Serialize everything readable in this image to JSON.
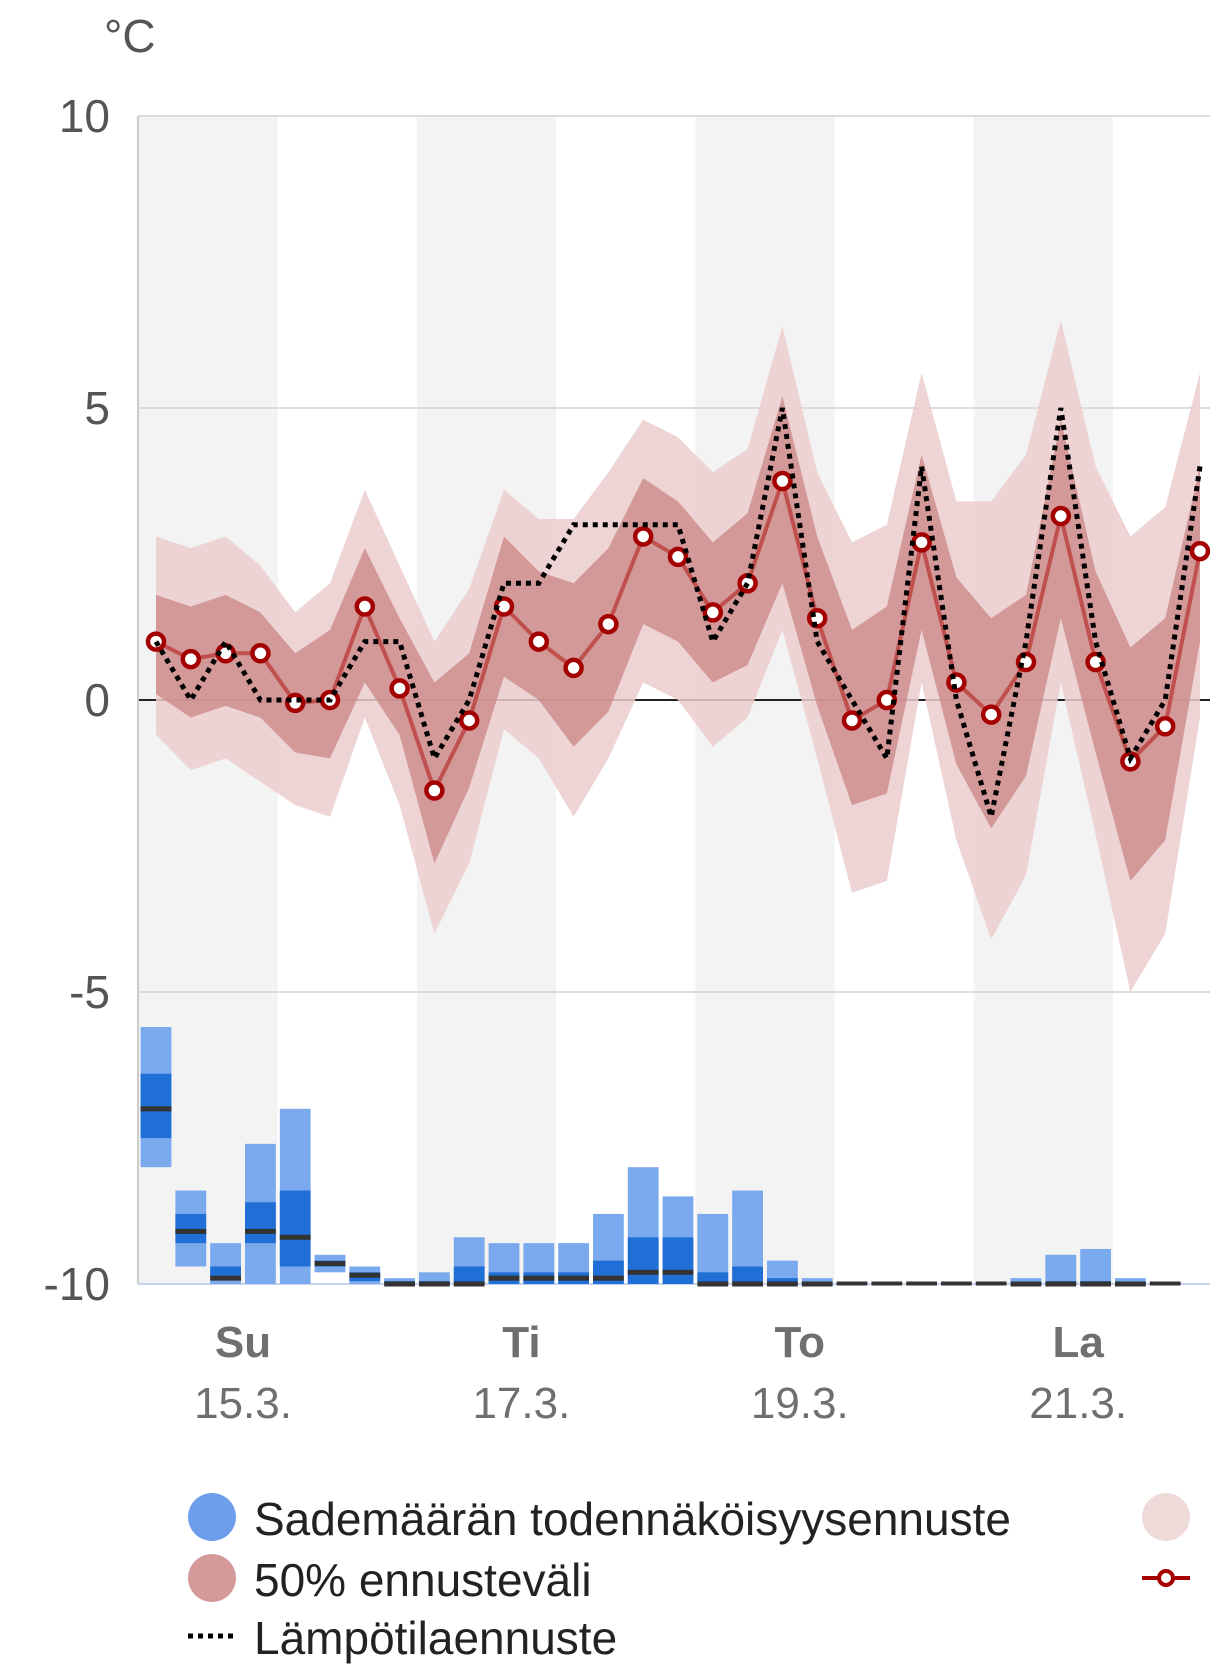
{
  "chart_data": {
    "type": "line",
    "y_unit_label": "°C",
    "ylim": [
      -10,
      10
    ],
    "y_ticks": [
      "10",
      "5",
      "0",
      "-5",
      "-10"
    ],
    "y_tick_values": [
      10,
      5,
      0,
      -5,
      -10
    ],
    "grid": true,
    "day_labels": [
      {
        "day": "Su",
        "date": "15.3.",
        "slot": 2
      },
      {
        "day": "Ti",
        "date": "17.3.",
        "slot": 10
      },
      {
        "day": "To",
        "date": "19.3.",
        "slot": 18
      },
      {
        "day": "La",
        "date": "21.3.",
        "slot": 26
      }
    ],
    "shaded_day_bands": [
      [
        0,
        4
      ],
      [
        8,
        12
      ],
      [
        16,
        20
      ],
      [
        24,
        28
      ]
    ],
    "n_slots": 31,
    "series": [
      {
        "name": "Lämpötilaennuste",
        "style": "dotted",
        "color": "#000000",
        "values": [
          1.0,
          0.0,
          1.0,
          0.0,
          0.0,
          0.0,
          1.0,
          1.0,
          -1.0,
          0.0,
          2.0,
          2.0,
          3.0,
          3.0,
          3.0,
          3.0,
          1.0,
          2.0,
          5.0,
          1.0,
          0.0,
          -1.0,
          4.0,
          0.0,
          -2.0,
          1.0,
          5.0,
          1.0,
          -1.0,
          0.0,
          4.0
        ]
      },
      {
        "name": "",
        "style": "line-with-markers",
        "color": "#c0504d",
        "marker_color": "#a50000",
        "values": [
          1.0,
          0.7,
          0.8,
          0.8,
          -0.05,
          0.0,
          1.6,
          0.2,
          -1.55,
          -0.35,
          1.6,
          1.0,
          0.55,
          1.3,
          2.8,
          2.45,
          1.5,
          2.0,
          3.75,
          1.4,
          -0.35,
          0.0,
          2.7,
          0.3,
          -0.25,
          0.65,
          3.15,
          0.65,
          -1.05,
          -0.45,
          2.55
        ]
      }
    ],
    "band_50": {
      "name": "50% ennusteväli",
      "color": "#c98585",
      "lower": [
        0.1,
        -0.3,
        -0.1,
        -0.3,
        -0.9,
        -1.0,
        0.3,
        -0.6,
        -2.8,
        -1.5,
        0.4,
        0.0,
        -0.8,
        -0.2,
        1.3,
        1.0,
        0.3,
        0.6,
        2.0,
        -0.1,
        -1.8,
        -1.6,
        1.2,
        -1.1,
        -2.2,
        -1.3,
        1.4,
        -0.9,
        -3.1,
        -2.4,
        1.0
      ],
      "upper": [
        1.8,
        1.6,
        1.8,
        1.5,
        0.8,
        1.2,
        2.6,
        1.4,
        0.3,
        0.8,
        2.8,
        2.2,
        2.0,
        2.6,
        3.8,
        3.4,
        2.7,
        3.2,
        5.2,
        2.8,
        1.2,
        1.6,
        4.2,
        2.1,
        1.4,
        1.8,
        4.8,
        2.2,
        0.9,
        1.4,
        4.0
      ]
    },
    "band_90": {
      "color": "#ebcccc",
      "lower": [
        -0.6,
        -1.2,
        -1.0,
        -1.4,
        -1.8,
        -2.0,
        -0.3,
        -1.8,
        -4.0,
        -2.8,
        -0.5,
        -1.0,
        -2.0,
        -1.0,
        0.3,
        0.0,
        -0.8,
        -0.3,
        1.2,
        -1.0,
        -3.3,
        -3.1,
        0.3,
        -2.4,
        -4.1,
        -3.0,
        0.3,
        -2.3,
        -5.0,
        -4.0,
        -0.3
      ],
      "upper": [
        2.8,
        2.6,
        2.8,
        2.3,
        1.5,
        2.0,
        3.6,
        2.3,
        1.0,
        1.9,
        3.6,
        3.1,
        3.1,
        3.9,
        4.8,
        4.5,
        3.9,
        4.3,
        6.4,
        3.9,
        2.7,
        3.0,
        5.6,
        3.4,
        3.4,
        4.2,
        6.5,
        4.0,
        2.8,
        3.3,
        5.6
      ]
    },
    "precipitation": {
      "name": "Sademäärän todennäköisyysennuste",
      "baseline": -10,
      "light_color": "#7aa9ed",
      "dark_color": "#1f6fd6",
      "median_color": "#333333",
      "bars": [
        {
          "slot": 0,
          "low": -8.0,
          "q1": -7.5,
          "q3": -6.4,
          "high": -5.6,
          "median": -7.0
        },
        {
          "slot": 1,
          "low": -9.7,
          "q1": -9.3,
          "q3": -8.8,
          "high": -8.4,
          "median": -9.1
        },
        {
          "slot": 2,
          "low": -10.0,
          "q1": -9.9,
          "q3": -9.7,
          "high": -9.3,
          "median": -9.9
        },
        {
          "slot": 3,
          "low": -10.0,
          "q1": -9.3,
          "q3": -8.6,
          "high": -7.6,
          "median": -9.1
        },
        {
          "slot": 4,
          "low": -10.0,
          "q1": -9.7,
          "q3": -8.4,
          "high": -7.0,
          "median": -9.2
        },
        {
          "slot": 5,
          "low": -9.8,
          "q1": -9.7,
          "q3": -9.6,
          "high": -9.5,
          "median": -9.65
        },
        {
          "slot": 6,
          "low": -10.0,
          "q1": -9.95,
          "q3": -9.8,
          "high": -9.7,
          "median": -9.85
        },
        {
          "slot": 7,
          "low": -10.0,
          "q1": -10.0,
          "q3": -9.95,
          "high": -9.9,
          "median": -10.0
        },
        {
          "slot": 8,
          "low": -10.0,
          "q1": -10.0,
          "q3": -9.95,
          "high": -9.8,
          "median": -10.0
        },
        {
          "slot": 9,
          "low": -10.0,
          "q1": -10.0,
          "q3": -9.7,
          "high": -9.2,
          "median": -10.0
        },
        {
          "slot": 10,
          "low": -10.0,
          "q1": -10.0,
          "q3": -9.8,
          "high": -9.3,
          "median": -9.9
        },
        {
          "slot": 11,
          "low": -10.0,
          "q1": -10.0,
          "q3": -9.8,
          "high": -9.3,
          "median": -9.9
        },
        {
          "slot": 12,
          "low": -10.0,
          "q1": -10.0,
          "q3": -9.8,
          "high": -9.3,
          "median": -9.9
        },
        {
          "slot": 13,
          "low": -10.0,
          "q1": -10.0,
          "q3": -9.6,
          "high": -8.8,
          "median": -9.9
        },
        {
          "slot": 14,
          "low": -10.0,
          "q1": -10.0,
          "q3": -9.2,
          "high": -8.0,
          "median": -9.8
        },
        {
          "slot": 15,
          "low": -10.0,
          "q1": -10.0,
          "q3": -9.2,
          "high": -8.5,
          "median": -9.8
        },
        {
          "slot": 16,
          "low": -10.0,
          "q1": -10.0,
          "q3": -9.8,
          "high": -8.8,
          "median": -10.0
        },
        {
          "slot": 17,
          "low": -10.0,
          "q1": -10.0,
          "q3": -9.7,
          "high": -8.4,
          "median": -10.0
        },
        {
          "slot": 18,
          "low": -10.0,
          "q1": -10.0,
          "q3": -9.9,
          "high": -9.6,
          "median": -10.0
        },
        {
          "slot": 19,
          "low": -10.0,
          "q1": -10.0,
          "q3": -9.97,
          "high": -9.9,
          "median": -10.0
        },
        {
          "slot": 25,
          "low": -10.0,
          "q1": -10.0,
          "q3": -9.97,
          "high": -9.9,
          "median": -10.0
        },
        {
          "slot": 26,
          "low": -10.0,
          "q1": -10.0,
          "q3": -9.95,
          "high": -9.5,
          "median": -10.0
        },
        {
          "slot": 27,
          "low": -10.0,
          "q1": -10.0,
          "q3": -9.95,
          "high": -9.4,
          "median": -10.0
        },
        {
          "slot": 28,
          "low": -10.0,
          "q1": -10.0,
          "q3": -9.97,
          "high": -9.9,
          "median": -10.0
        }
      ]
    },
    "legend": [
      {
        "key": "precip",
        "label": "Sademäärän todennäköisyysennuste",
        "symbol": "circle",
        "color": "#6d9eeb"
      },
      {
        "key": "band50",
        "label": "50% ennusteväli",
        "symbol": "circle",
        "color": "#d49a9a"
      },
      {
        "key": "forecast",
        "label": "Lämpötilaennuste",
        "symbol": "dotted-line",
        "color": "#000000"
      },
      {
        "key": "band90",
        "label": "",
        "symbol": "circle",
        "color": "#efdada"
      },
      {
        "key": "median",
        "label": "",
        "symbol": "line-marker",
        "color": "#a50000"
      }
    ]
  }
}
